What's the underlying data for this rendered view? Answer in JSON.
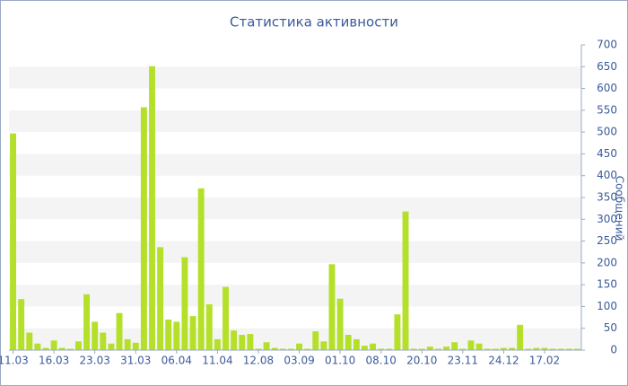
{
  "chart_data": {
    "type": "bar",
    "title": "Статистика активности",
    "y_label": "Сообщений",
    "categories": [
      "11.03",
      null,
      null,
      null,
      null,
      "16.03",
      null,
      null,
      null,
      null,
      "23.03",
      null,
      null,
      null,
      null,
      "31.03",
      null,
      null,
      null,
      null,
      "06.04",
      null,
      null,
      null,
      null,
      "11.04",
      null,
      null,
      null,
      null,
      "12.08",
      null,
      null,
      null,
      null,
      "03.09",
      null,
      null,
      null,
      null,
      "01.10",
      null,
      null,
      null,
      null,
      "08.10",
      null,
      null,
      null,
      null,
      "20.10",
      null,
      null,
      null,
      null,
      "23.11",
      null,
      null,
      null,
      null,
      "24.12",
      null,
      null,
      null,
      null,
      "17.02",
      null,
      null,
      null,
      null
    ],
    "values": [
      497,
      117,
      40,
      15,
      5,
      22,
      5,
      3,
      20,
      128,
      65,
      40,
      15,
      85,
      25,
      17,
      557,
      651,
      236,
      70,
      65,
      213,
      78,
      371,
      105,
      25,
      145,
      45,
      35,
      37,
      3,
      18,
      5,
      3,
      3,
      15,
      3,
      43,
      20,
      197,
      118,
      35,
      25,
      10,
      15,
      3,
      3,
      82,
      318,
      3,
      3,
      8,
      3,
      8,
      18,
      3,
      22,
      15,
      3,
      3,
      5,
      5,
      58,
      3,
      5,
      5,
      3,
      3,
      3,
      3
    ],
    "color": "#b5e02a",
    "ylim": [
      0,
      700
    ],
    "yticks": [
      0,
      50,
      100,
      150,
      200,
      250,
      300,
      350,
      400,
      450,
      500,
      550,
      600,
      650,
      700
    ],
    "grid": true,
    "y_axis_side": "right"
  }
}
